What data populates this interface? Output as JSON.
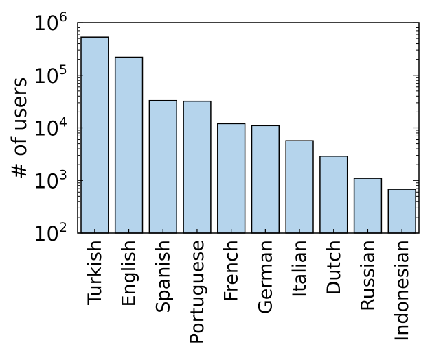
{
  "chart_data": {
    "type": "bar",
    "categories": [
      "Turkish",
      "English",
      "Spanish",
      "Portuguese",
      "French",
      "German",
      "Italian",
      "Dutch",
      "Russian",
      "Indonesian"
    ],
    "values": [
      530000,
      220000,
      33000,
      32000,
      12000,
      11000,
      5700,
      2900,
      1100,
      680
    ],
    "title": "",
    "xlabel": "",
    "ylabel": "# of users",
    "yscale": "log",
    "ylim": [
      100,
      1000000
    ],
    "ytick_labels": [
      {
        "base": "10",
        "exp": "2"
      },
      {
        "base": "10",
        "exp": "3"
      },
      {
        "base": "10",
        "exp": "4"
      },
      {
        "base": "10",
        "exp": "5"
      },
      {
        "base": "10",
        "exp": "6"
      }
    ],
    "bar_color": "#b5d4ec",
    "edge_color": "#000000",
    "grid": false,
    "legend": "none"
  }
}
